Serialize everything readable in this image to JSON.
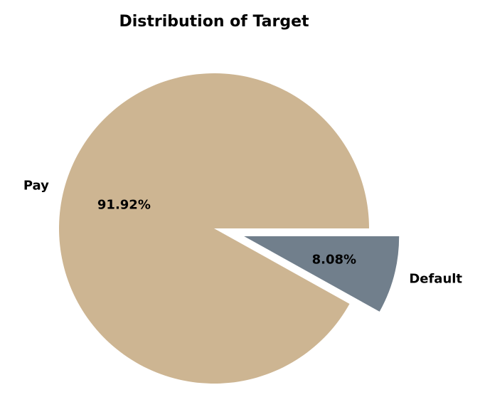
{
  "chart_data": {
    "type": "pie",
    "title": "Distribution of Target",
    "slices": [
      {
        "label": "Pay",
        "value": 91.92,
        "pct_label": "91.92%",
        "color": "#cdb592",
        "exploded": false
      },
      {
        "label": "Default",
        "value": 8.08,
        "pct_label": "8.08%",
        "color": "#717f8c",
        "exploded": true
      }
    ],
    "legend": "none"
  }
}
